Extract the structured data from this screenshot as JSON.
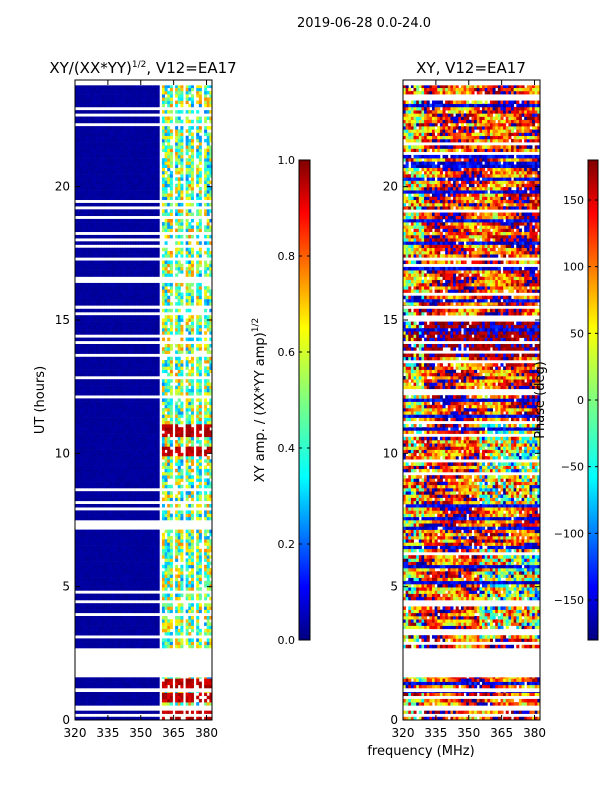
{
  "suptitle": "2019-06-28 0.0-24.0",
  "colors": {
    "masked": "#ffffff",
    "frame": "#000000",
    "colormap": "jet",
    "colormap_stops": [
      "#00007f",
      "#0000ff",
      "#007fff",
      "#00ffff",
      "#7fff7f",
      "#ffff00",
      "#ff7f00",
      "#ff0000",
      "#7f0000"
    ]
  },
  "shared_xlabel": "frequency (MHz)",
  "chart_data": [
    {
      "type": "heatmap",
      "title_text": "XY/(XX*YY)",
      "title_sup": "1/2",
      "title_rest": ", V12=EA17",
      "xlabel": "",
      "ylabel": "UT (hours)",
      "xlim": [
        320,
        382.5
      ],
      "ylim": [
        0,
        24
      ],
      "x_ticks": [
        320,
        335,
        350,
        365,
        380
      ],
      "y_ticks": [
        0,
        5,
        10,
        15,
        20
      ],
      "description_values": {
        "background_value": 0.0,
        "band_columns_mhz": [
          [
            360,
            364
          ],
          [
            366,
            369
          ],
          [
            370.5,
            373.5
          ],
          [
            375,
            378
          ],
          [
            379,
            382
          ]
        ],
        "band_value_range": [
          0.25,
          0.75
        ],
        "flare_hours": [
          0.1,
          0.8,
          1.3,
          10.0,
          10.8
        ],
        "flare_value": 0.9
      },
      "data_rows_hours": [
        [
          0.0,
          0.35
        ],
        [
          0.55,
          1.05
        ],
        [
          1.2,
          1.6
        ],
        [
          2.7,
          15.55
        ],
        [
          15.55,
          23.8
        ]
      ],
      "colorbar": {
        "label_text": "XY amp. / (XX*YY amp)",
        "label_sup": "1/2",
        "range": [
          0.0,
          1.0
        ],
        "ticks": [
          0.0,
          0.2,
          0.4,
          0.6,
          0.8,
          1.0
        ],
        "tick_labels": [
          "0.0",
          "0.2",
          "0.4",
          "0.6",
          "0.8",
          "1.0"
        ]
      }
    },
    {
      "type": "heatmap",
      "title_text": "XY, V12=EA17",
      "xlabel": "frequency (MHz)",
      "ylabel": "",
      "xlim": [
        320,
        382.5
      ],
      "ylim": [
        0,
        24
      ],
      "x_ticks": [
        320,
        335,
        350,
        365,
        380
      ],
      "y_ticks": [
        0,
        5,
        10,
        15,
        20
      ],
      "description_values": {
        "phase_range_deg": [
          -180,
          180
        ],
        "typical_phase_deg": 120,
        "bands_low_hours": [
          [
            3.0,
            6.5
          ],
          [
            8.0,
            11.0
          ]
        ]
      },
      "data_rows_hours": [
        [
          0.0,
          0.35
        ],
        [
          0.55,
          1.05
        ],
        [
          1.2,
          1.6
        ],
        [
          2.7,
          15.55
        ],
        [
          15.55,
          23.8
        ]
      ],
      "colorbar": {
        "label_text": "Phase (deg)",
        "range": [
          -180,
          180
        ],
        "ticks": [
          -150,
          -100,
          -50,
          0,
          50,
          100,
          150
        ],
        "tick_labels": [
          "−150",
          "−100",
          "−50",
          "0",
          "50",
          "100",
          "150"
        ]
      }
    }
  ]
}
